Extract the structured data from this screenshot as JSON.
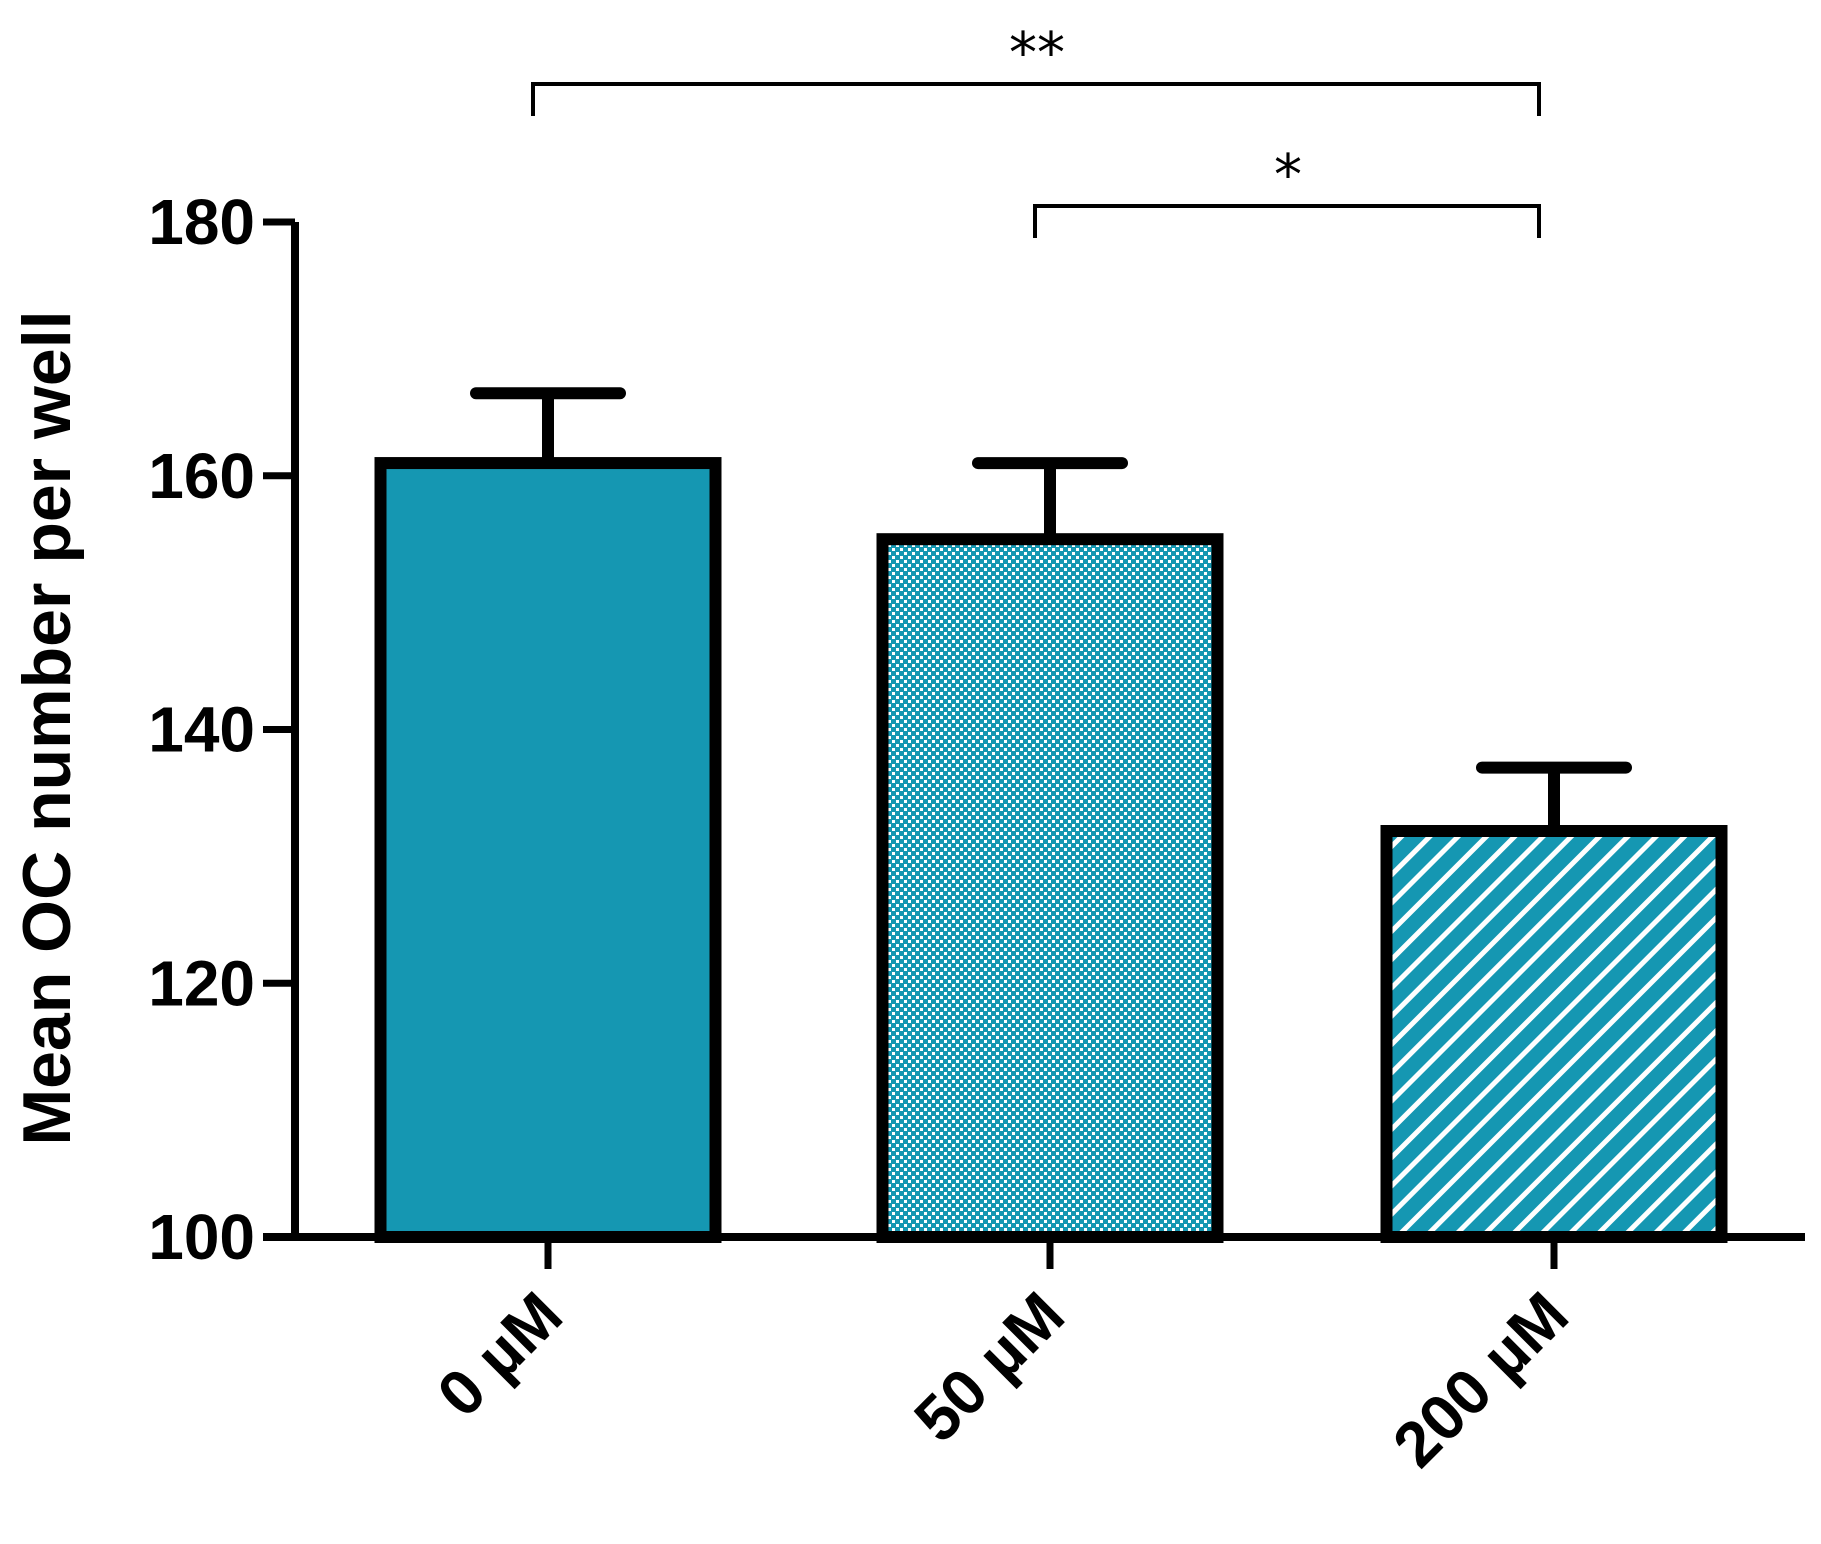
{
  "chart_data": {
    "type": "bar",
    "categories": [
      "0 µM",
      "50 µM",
      "200 µM"
    ],
    "values": [
      161,
      155,
      132
    ],
    "errors": [
      5.5,
      6,
      5
    ],
    "ylabel": "Mean OC number per well",
    "xlabel": "",
    "ylim": [
      100,
      180
    ],
    "yticks": [
      "100",
      "120",
      "140",
      "160",
      "180"
    ],
    "fills": [
      "solid",
      "dots",
      "stripes"
    ],
    "bar_color": "#1597b2",
    "significance": [
      {
        "from": 0,
        "to": 2,
        "label": "**"
      },
      {
        "from": 1,
        "to": 2,
        "label": "*"
      }
    ]
  }
}
